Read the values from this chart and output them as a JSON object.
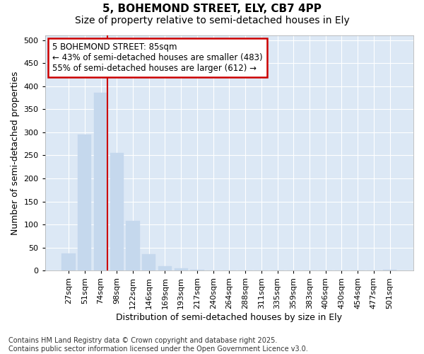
{
  "title": "5, BOHEMOND STREET, ELY, CB7 4PP",
  "subtitle": "Size of property relative to semi-detached houses in Ely",
  "xlabel": "Distribution of semi-detached houses by size in Ely",
  "ylabel": "Number of semi-detached properties",
  "bar_color": "#c5d8ed",
  "bar_edge_color": "#c5d8ed",
  "plot_bg_color": "#dce8f5",
  "fig_bg_color": "#ffffff",
  "property_line_color": "#cc0000",
  "annotation_box_edge": "#cc0000",
  "categories": [
    "27sqm",
    "51sqm",
    "74sqm",
    "98sqm",
    "122sqm",
    "146sqm",
    "169sqm",
    "193sqm",
    "217sqm",
    "240sqm",
    "264sqm",
    "288sqm",
    "311sqm",
    "335sqm",
    "359sqm",
    "383sqm",
    "406sqm",
    "430sqm",
    "454sqm",
    "477sqm",
    "501sqm"
  ],
  "values": [
    37,
    295,
    385,
    255,
    108,
    35,
    10,
    5,
    2,
    0,
    0,
    0,
    0,
    0,
    0,
    0,
    0,
    0,
    0,
    0,
    2
  ],
  "property_bar_index": 2,
  "annotation_line1": "5 BOHEMOND STREET: 85sqm",
  "annotation_line2": "← 43% of semi-detached houses are smaller (483)",
  "annotation_line3": "55% of semi-detached houses are larger (612) →",
  "ylim": [
    0,
    510
  ],
  "yticks": [
    0,
    50,
    100,
    150,
    200,
    250,
    300,
    350,
    400,
    450,
    500
  ],
  "footnote_line1": "Contains HM Land Registry data © Crown copyright and database right 2025.",
  "footnote_line2": "Contains public sector information licensed under the Open Government Licence v3.0.",
  "title_fontsize": 11,
  "subtitle_fontsize": 10,
  "axis_label_fontsize": 9,
  "tick_fontsize": 8,
  "annotation_fontsize": 8.5,
  "footnote_fontsize": 7
}
